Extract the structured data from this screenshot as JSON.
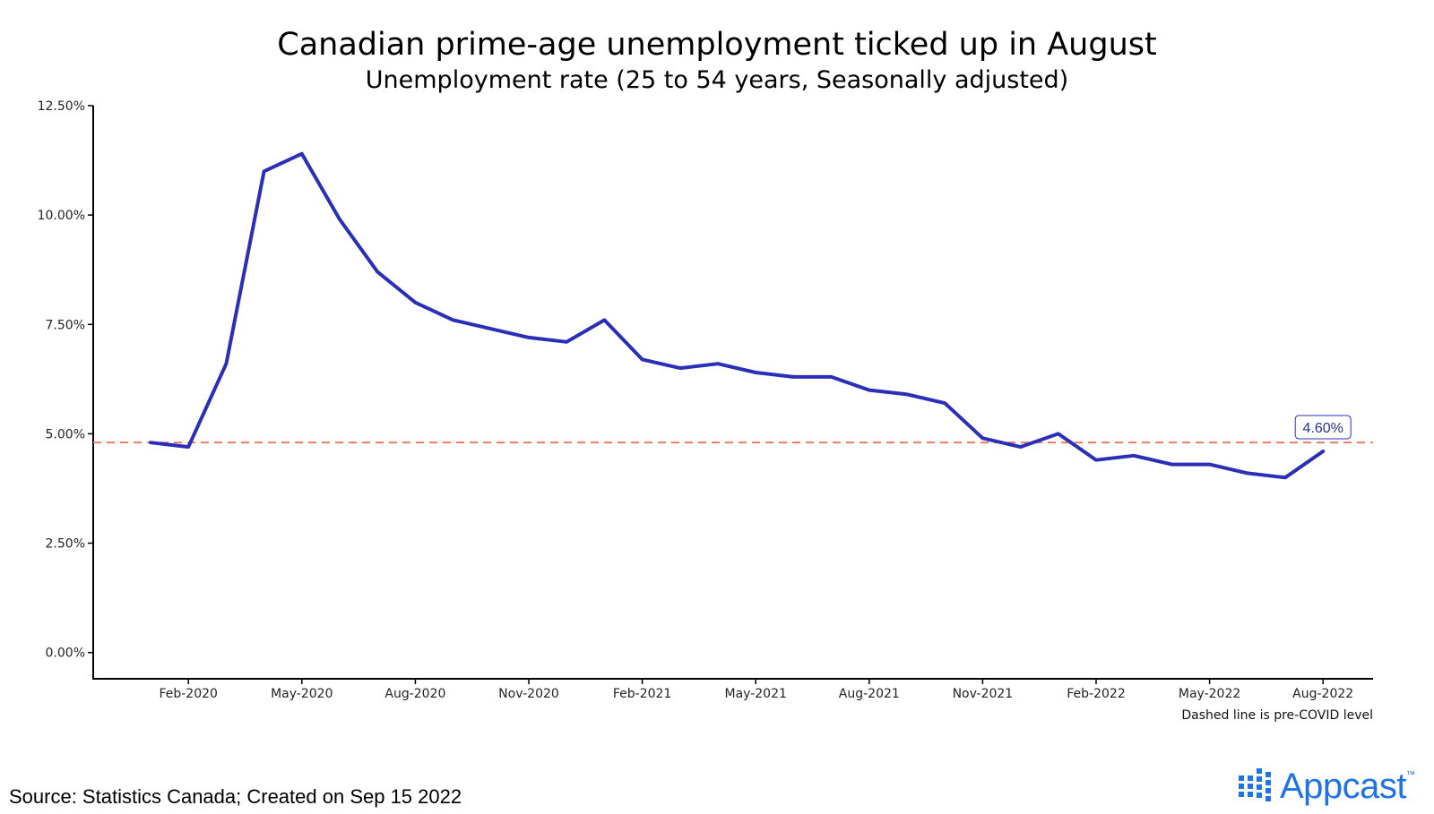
{
  "header": {
    "title": "Canadian prime-age unemployment ticked up in August",
    "subtitle": "Unemployment rate (25 to 54 years, Seasonally adjusted)"
  },
  "footer": {
    "source": "Source: Statistics Canada; Created on Sep 15 2022",
    "logo_text": "Appcast",
    "logo_tm": "™"
  },
  "colors": {
    "line": "#2b2fb8",
    "reference_line": "#f07060",
    "logo": "#1f73e6"
  },
  "chart_data": {
    "type": "line",
    "title": "Canadian prime-age unemployment ticked up in August",
    "subtitle": "Unemployment rate (25 to 54 years, Seasonally adjusted)",
    "xlabel": "",
    "ylabel": "",
    "x": [
      "Jan-2020",
      "Feb-2020",
      "Mar-2020",
      "Apr-2020",
      "May-2020",
      "Jun-2020",
      "Jul-2020",
      "Aug-2020",
      "Sep-2020",
      "Oct-2020",
      "Nov-2020",
      "Dec-2020",
      "Jan-2021",
      "Feb-2021",
      "Mar-2021",
      "Apr-2021",
      "May-2021",
      "Jun-2021",
      "Jul-2021",
      "Aug-2021",
      "Sep-2021",
      "Oct-2021",
      "Nov-2021",
      "Dec-2021",
      "Jan-2022",
      "Feb-2022",
      "Mar-2022",
      "Apr-2022",
      "May-2022",
      "Jun-2022",
      "Jul-2022",
      "Aug-2022"
    ],
    "series": [
      {
        "values": [
          4.8,
          4.7,
          6.6,
          11.0,
          11.4,
          9.9,
          8.7,
          8.0,
          7.6,
          7.4,
          7.2,
          7.1,
          7.6,
          6.7,
          6.5,
          6.6,
          6.4,
          6.3,
          6.3,
          6.0,
          5.9,
          5.7,
          4.9,
          4.7,
          5.0,
          4.4,
          4.5,
          4.3,
          4.3,
          4.1,
          4.0,
          4.6
        ]
      }
    ],
    "x_ticks": [
      "Feb-2020",
      "May-2020",
      "Aug-2020",
      "Nov-2020",
      "Feb-2021",
      "May-2021",
      "Aug-2021",
      "Nov-2021",
      "Feb-2022",
      "May-2022",
      "Aug-2022"
    ],
    "y_ticks": [
      0,
      2.5,
      5,
      7.5,
      10,
      12.5
    ],
    "y_tick_labels": [
      "0.00%",
      "2.50%",
      "5.00%",
      "7.50%",
      "10.00%",
      "12.50%"
    ],
    "ylim": [
      -0.6,
      12.5
    ],
    "reference_line": {
      "value": 4.8,
      "style": "dashed",
      "note": "Dashed line is pre-COVID level"
    },
    "annotation": {
      "x": "Aug-2022",
      "label": "4.60%"
    },
    "grid": false,
    "legend": "none"
  }
}
